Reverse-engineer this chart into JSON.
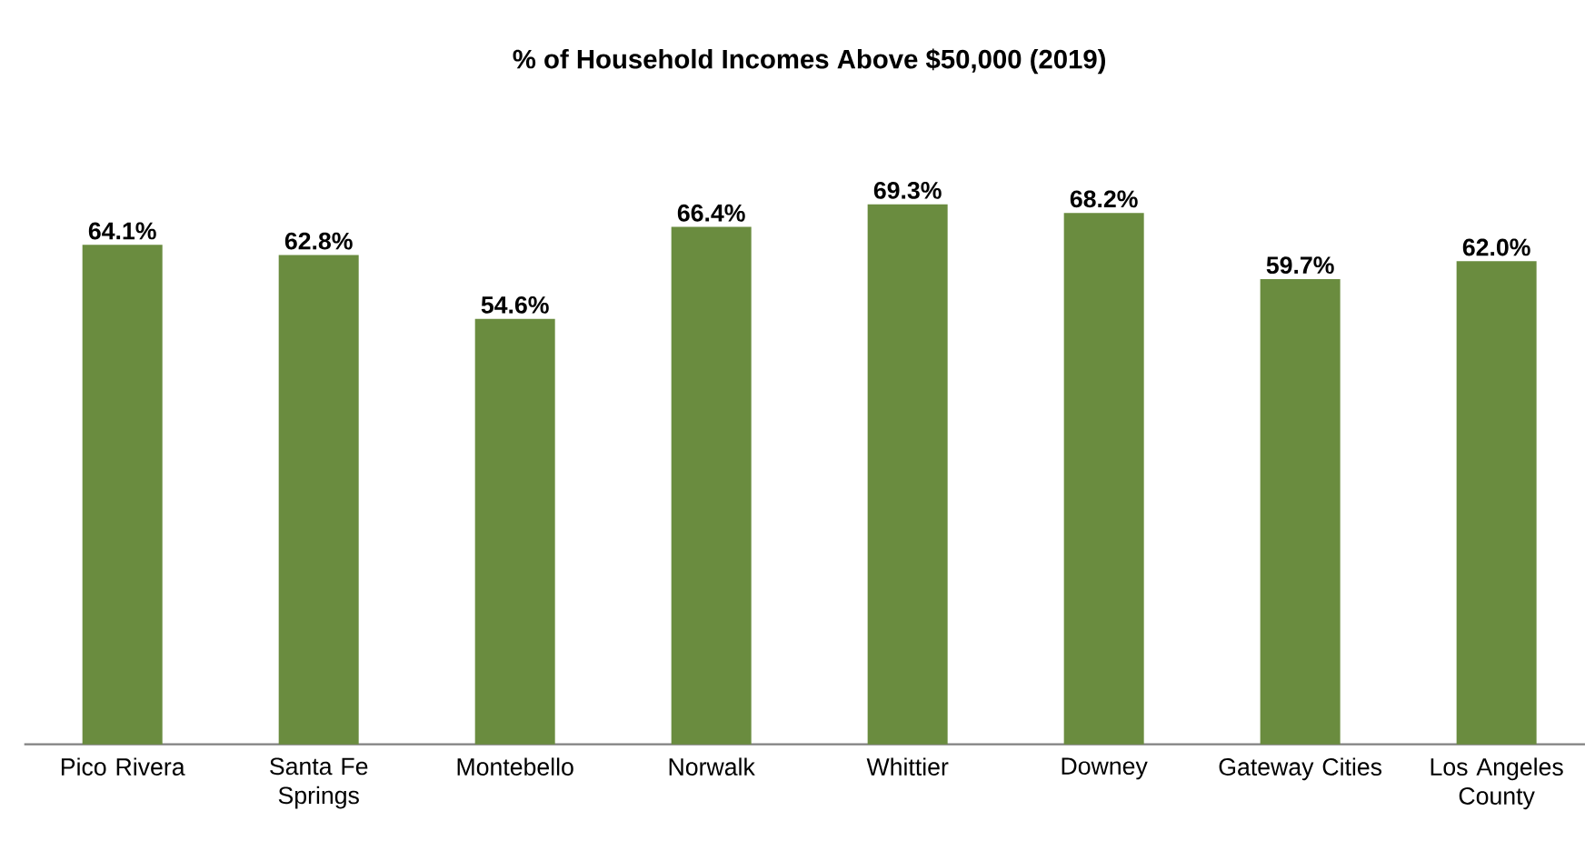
{
  "chart_data": {
    "type": "bar",
    "title": "% of Household Incomes Above $50,000  (2019)",
    "categories": [
      "Pico Rivera",
      "Santa Fe Springs",
      "Montebello",
      "Norwalk",
      "Whittier",
      "Downey",
      "Gateway Cities",
      "Los Angeles County"
    ],
    "values": [
      64.1,
      62.8,
      54.6,
      66.4,
      69.3,
      68.2,
      59.7,
      62.0
    ],
    "value_labels": [
      "64.1%",
      "62.8%",
      "54.6%",
      "66.4%",
      "69.3%",
      "68.2%",
      "59.7%",
      "62.0%"
    ],
    "color": "#6a8c3f"
  }
}
